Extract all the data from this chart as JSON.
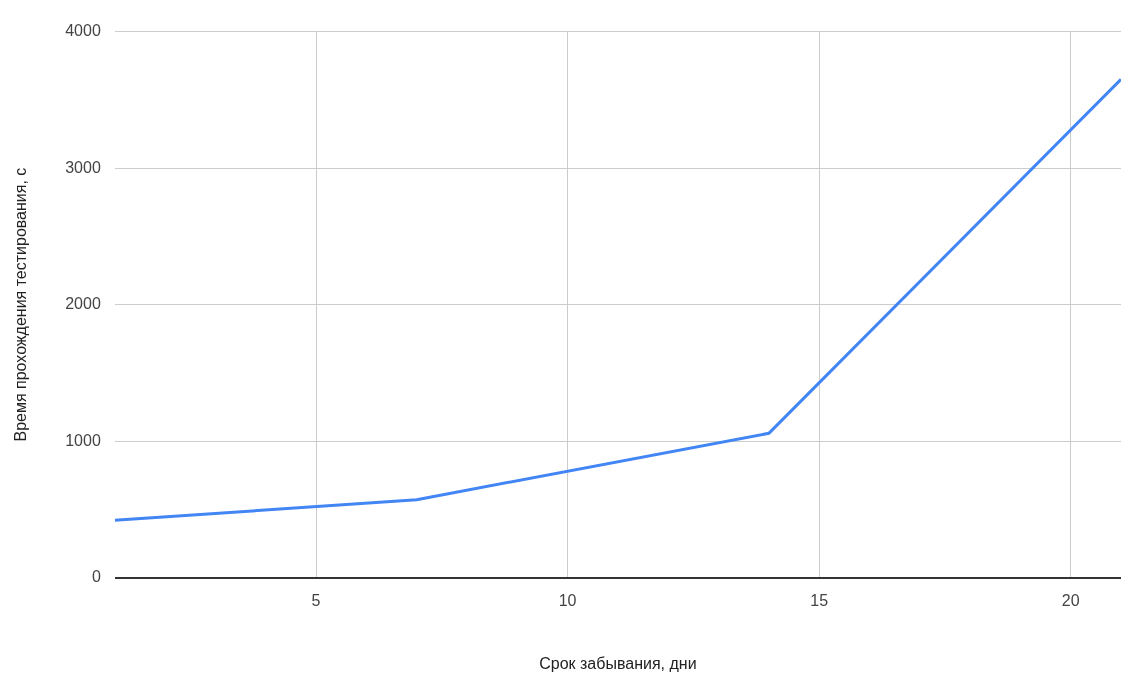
{
  "chart_data": {
    "type": "line",
    "xlabel": "Срок забывания, дни",
    "ylabel": "Время прохождения тестирования, с",
    "x": [
      1,
      7,
      14,
      21
    ],
    "series": [
      {
        "color": "#4285f4",
        "values": [
          420,
          571,
          1057,
          3650
        ]
      }
    ],
    "xlim": [
      1,
      21
    ],
    "xticks": [
      5,
      10,
      15,
      20
    ],
    "ylim": [
      0,
      4000
    ],
    "yticks": [
      0,
      1000,
      2000,
      3000,
      4000
    ],
    "grid": true,
    "legend": false,
    "marker": "none",
    "line_style": "solid"
  }
}
